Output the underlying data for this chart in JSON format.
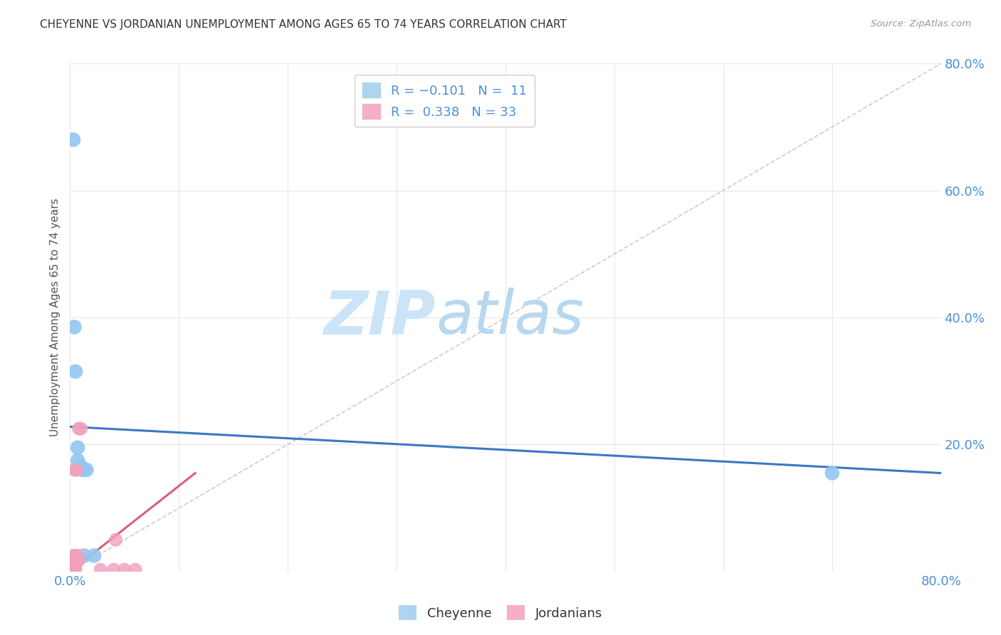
{
  "title": "CHEYENNE VS JORDANIAN UNEMPLOYMENT AMONG AGES 65 TO 74 YEARS CORRELATION CHART",
  "source": "Source: ZipAtlas.com",
  "ylabel": "Unemployment Among Ages 65 to 74 years",
  "xlim": [
    0,
    0.8
  ],
  "ylim": [
    0,
    0.8
  ],
  "cheyenne_scatter": [
    [
      0.003,
      0.68
    ],
    [
      0.004,
      0.385
    ],
    [
      0.005,
      0.315
    ],
    [
      0.007,
      0.195
    ],
    [
      0.007,
      0.175
    ],
    [
      0.01,
      0.165
    ],
    [
      0.012,
      0.16
    ],
    [
      0.015,
      0.16
    ],
    [
      0.013,
      0.025
    ],
    [
      0.022,
      0.025
    ],
    [
      0.7,
      0.155
    ]
  ],
  "jordanian_scatter": [
    [
      0.001,
      0.003
    ],
    [
      0.002,
      0.003
    ],
    [
      0.003,
      0.003
    ],
    [
      0.004,
      0.003
    ],
    [
      0.005,
      0.003
    ],
    [
      0.001,
      0.006
    ],
    [
      0.002,
      0.006
    ],
    [
      0.003,
      0.006
    ],
    [
      0.004,
      0.006
    ],
    [
      0.002,
      0.01
    ],
    [
      0.003,
      0.01
    ],
    [
      0.001,
      0.013
    ],
    [
      0.002,
      0.013
    ],
    [
      0.003,
      0.016
    ],
    [
      0.006,
      0.016
    ],
    [
      0.004,
      0.02
    ],
    [
      0.005,
      0.02
    ],
    [
      0.007,
      0.02
    ],
    [
      0.002,
      0.022
    ],
    [
      0.003,
      0.025
    ],
    [
      0.005,
      0.025
    ],
    [
      0.007,
      0.025
    ],
    [
      0.004,
      0.16
    ],
    [
      0.006,
      0.16
    ],
    [
      0.008,
      0.225
    ],
    [
      0.01,
      0.225
    ],
    [
      0.003,
      0.003
    ],
    [
      0.028,
      0.003
    ],
    [
      0.04,
      0.003
    ],
    [
      0.05,
      0.003
    ],
    [
      0.06,
      0.003
    ],
    [
      0.042,
      0.05
    ],
    [
      0.007,
      0.016
    ]
  ],
  "cheyenne_line_y0": 0.228,
  "cheyenne_line_y1": 0.155,
  "jordanian_line_x0": 0.0,
  "jordanian_line_x1": 0.115,
  "jordanian_line_y0": 0.0,
  "jordanian_line_y1": 0.155,
  "diag_color": "#cccccc",
  "cheyenne_color": "#3b78c4",
  "jordanian_color": "#d9607a",
  "cheyenne_scatter_color": "#93c6f0",
  "jordanian_scatter_color": "#f0a0bc",
  "watermark_zip_color": "#cce4f7",
  "watermark_atlas_color": "#b8d8f0",
  "background_color": "#ffffff",
  "grid_color": "#e8e8e8",
  "tick_color": "#4a90d9",
  "legend_label_color": "#4a90d9",
  "title_color": "#333333",
  "source_color": "#999999",
  "ylabel_color": "#555555"
}
